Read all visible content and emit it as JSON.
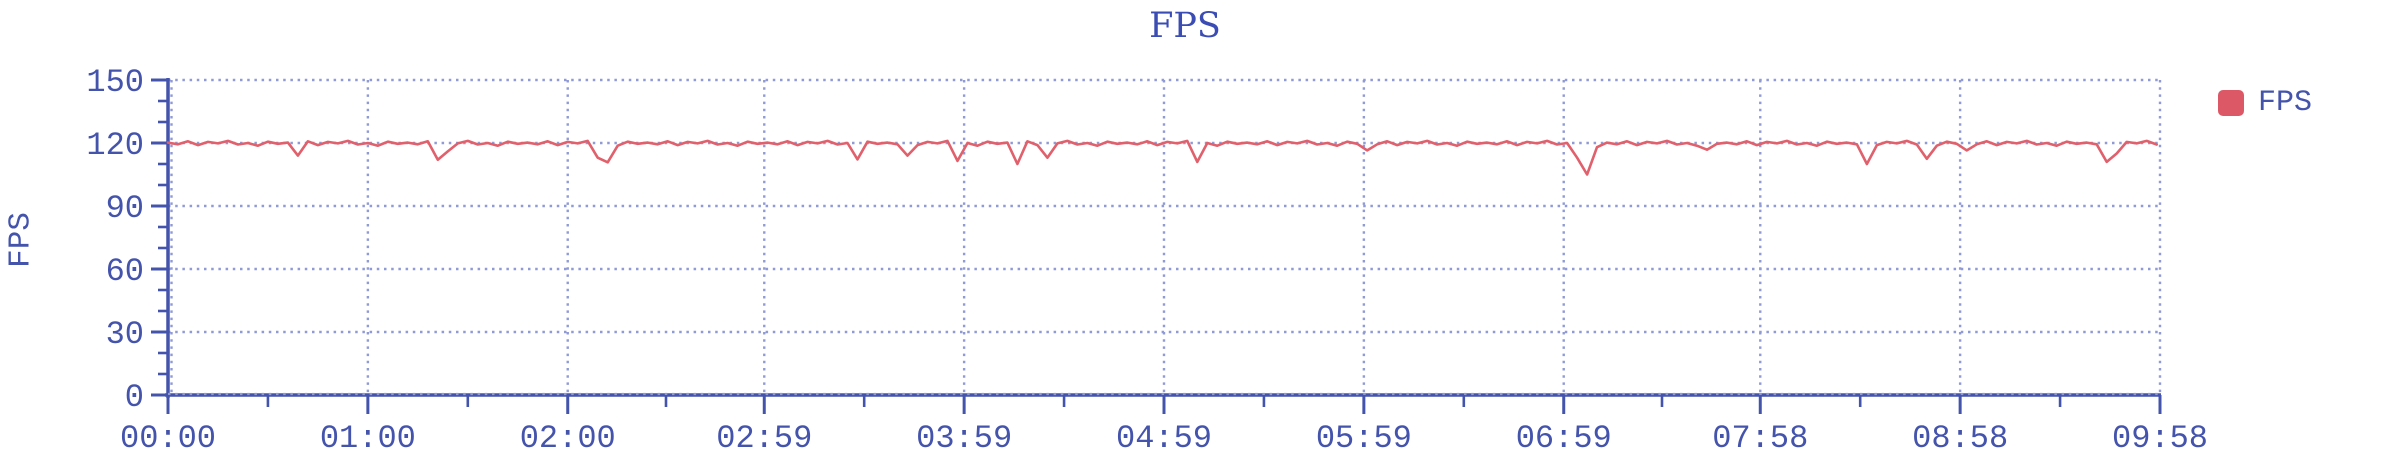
{
  "title": "FPS",
  "y_axis_title": "FPS",
  "legend": {
    "items": [
      {
        "label": "FPS",
        "color": "#dd5866"
      }
    ]
  },
  "colors": {
    "axis": "#4454ac",
    "grid": "#909bd6",
    "line": "#e0606c",
    "title": "#3b4db4"
  },
  "chart_data": {
    "type": "line",
    "title": "FPS",
    "xlabel": "",
    "ylabel": "FPS",
    "ylim": [
      0,
      150
    ],
    "y_ticks": [
      0,
      30,
      60,
      90,
      120,
      150
    ],
    "y_minor_step": 10,
    "x_tick_labels": [
      "00:00",
      "01:00",
      "02:00",
      "02:59",
      "03:59",
      "04:59",
      "05:59",
      "06:59",
      "07:58",
      "08:58",
      "09:58"
    ],
    "x_tick_seconds": [
      0,
      60,
      120,
      179,
      239,
      299,
      359,
      419,
      478,
      538,
      598
    ],
    "xlim_seconds": [
      0,
      598
    ],
    "grid": "dotted",
    "legend_position": "right",
    "series": [
      {
        "name": "FPS",
        "color": "#e0606c",
        "x_start_seconds": 0,
        "x_step_seconds": 3,
        "values": [
          120.2,
          119.4,
          120.8,
          119.0,
          120.5,
          119.8,
          121.0,
          119.3,
          120.0,
          118.7,
          120.6,
          119.6,
          120.2,
          114.0,
          120.8,
          119.0,
          120.5,
          119.8,
          121.0,
          119.3,
          120.0,
          118.7,
          120.6,
          119.6,
          120.2,
          119.4,
          120.8,
          112.0,
          116.0,
          119.8,
          121.0,
          119.3,
          120.0,
          118.7,
          120.6,
          119.6,
          120.2,
          119.4,
          120.8,
          119.0,
          120.5,
          119.8,
          121.0,
          113.0,
          110.8,
          118.7,
          120.6,
          119.6,
          120.2,
          119.4,
          120.8,
          119.0,
          120.5,
          119.8,
          121.0,
          119.3,
          120.0,
          118.7,
          120.6,
          119.6,
          120.2,
          119.4,
          120.8,
          119.0,
          120.5,
          119.8,
          121.0,
          119.3,
          120.0,
          112.2,
          120.6,
          119.6,
          120.2,
          119.4,
          114.0,
          119.0,
          120.5,
          119.8,
          121.0,
          111.5,
          120.0,
          118.7,
          120.6,
          119.6,
          120.2,
          110.0,
          120.8,
          119.0,
          113.0,
          119.8,
          121.0,
          119.3,
          120.0,
          118.7,
          120.6,
          119.6,
          120.2,
          119.4,
          120.8,
          119.0,
          120.5,
          119.8,
          121.0,
          111.0,
          120.0,
          118.7,
          120.6,
          119.6,
          120.2,
          119.4,
          120.8,
          119.0,
          120.5,
          119.8,
          121.0,
          119.3,
          120.0,
          118.7,
          120.6,
          119.6,
          116.5,
          119.4,
          120.8,
          119.0,
          120.5,
          119.8,
          121.0,
          119.3,
          120.0,
          118.7,
          120.6,
          119.6,
          120.2,
          119.4,
          120.8,
          119.0,
          120.5,
          119.8,
          121.0,
          119.3,
          120.0,
          113.0,
          105.0,
          118.0,
          120.2,
          119.4,
          120.8,
          119.0,
          120.5,
          119.8,
          121.0,
          119.3,
          120.0,
          118.7,
          116.8,
          119.6,
          120.2,
          119.4,
          120.8,
          119.0,
          120.5,
          119.8,
          121.0,
          119.3,
          120.0,
          118.7,
          120.6,
          119.6,
          120.2,
          119.4,
          110.0,
          119.0,
          120.5,
          119.8,
          121.0,
          119.3,
          112.5,
          118.7,
          120.6,
          119.6,
          116.5,
          119.4,
          120.8,
          119.0,
          120.5,
          119.8,
          121.0,
          119.3,
          120.0,
          118.7,
          120.6,
          119.6,
          120.2,
          119.4,
          111.0,
          115.0,
          120.5,
          119.8,
          121.0,
          119.3
        ]
      }
    ]
  }
}
